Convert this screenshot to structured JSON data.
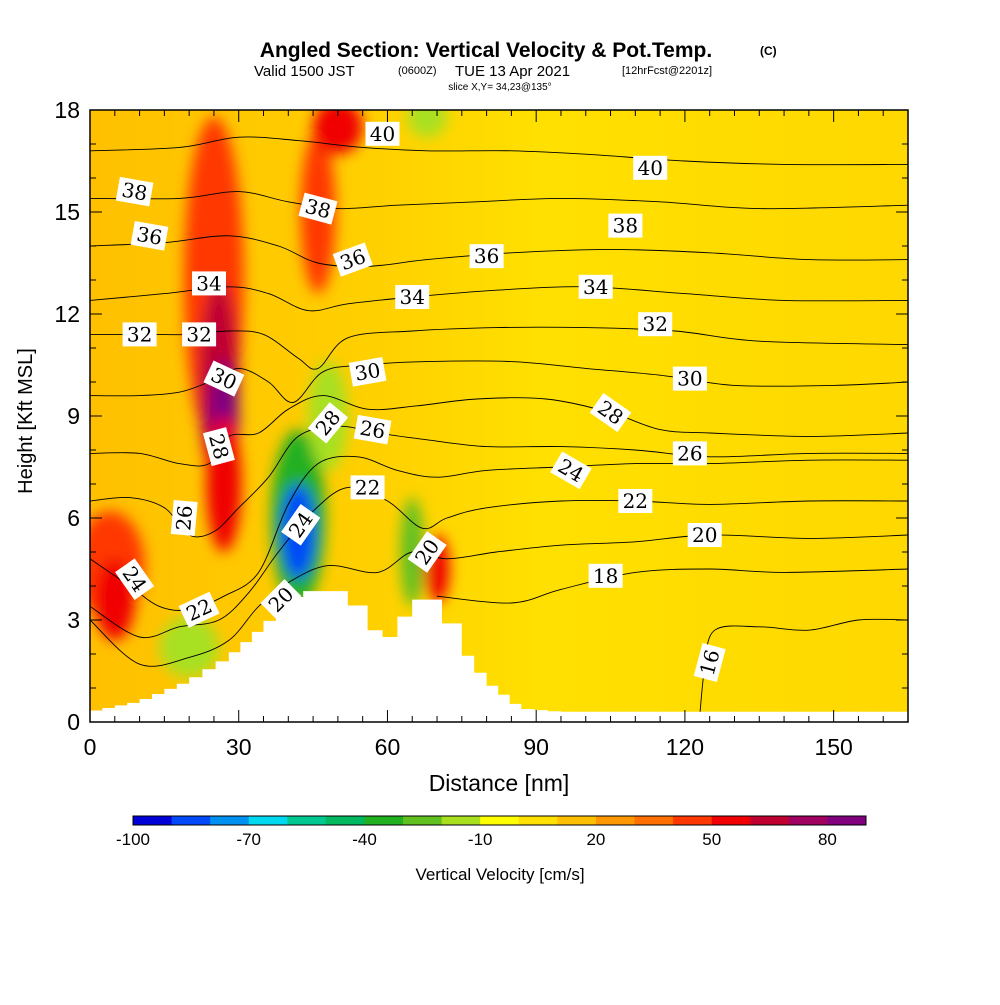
{
  "header": {
    "title": "Angled Section: Vertical Velocity & Pot.Temp.",
    "title_mark": "(C)",
    "valid_prefix": "Valid 1500 JST",
    "valid_utc": "(0600Z)",
    "valid_date": "TUE 13 Apr 2021",
    "forecast": "[12hrFcst@2201z]",
    "slice": "slice X,Y= 34,23@135°"
  },
  "chart_data": {
    "type": "heatmap",
    "xlabel": "Distance [nm]",
    "ylabel": "Height [Kft MSL]",
    "xlim": [
      0,
      165
    ],
    "ylim": [
      0,
      18
    ],
    "x_ticks": [
      0,
      30,
      60,
      90,
      120,
      150
    ],
    "y_ticks": [
      0,
      3,
      6,
      9,
      12,
      15,
      18
    ],
    "terrain_top_kft": [
      {
        "x": 0,
        "y": 0.3
      },
      {
        "x": 10,
        "y": 0.6
      },
      {
        "x": 20,
        "y": 1.2
      },
      {
        "x": 28,
        "y": 1.9
      },
      {
        "x": 35,
        "y": 2.8
      },
      {
        "x": 40,
        "y": 3.5
      },
      {
        "x": 43,
        "y": 3.85
      },
      {
        "x": 52,
        "y": 3.85
      },
      {
        "x": 56,
        "y": 3.0
      },
      {
        "x": 59,
        "y": 2.4
      },
      {
        "x": 62,
        "y": 2.6
      },
      {
        "x": 65,
        "y": 3.6
      },
      {
        "x": 71,
        "y": 3.6
      },
      {
        "x": 75,
        "y": 2.2
      },
      {
        "x": 80,
        "y": 1.2
      },
      {
        "x": 87,
        "y": 0.4
      },
      {
        "x": 95,
        "y": 0.3
      },
      {
        "x": 165,
        "y": 0.3
      }
    ],
    "colorbar": {
      "label": "Vertical Velocity [cm/s]",
      "tick_labels": [
        "-100",
        "-70",
        "-40",
        "-10",
        "20",
        "50",
        "80"
      ],
      "colors": [
        "#0000d8",
        "#0048f8",
        "#0090f0",
        "#00d8f0",
        "#00c890",
        "#00b860",
        "#20b020",
        "#60c020",
        "#a8e020",
        "#ffff00",
        "#ffe000",
        "#ffc000",
        "#ff9800",
        "#ff7000",
        "#ff3800",
        "#f00000",
        "#c00030",
        "#a00060",
        "#800080"
      ]
    },
    "theta_contours": [
      {
        "level": 16,
        "label": "16",
        "path": [
          [
            123,
            0.2
          ],
          [
            124,
            1.6
          ],
          [
            126,
            2.7
          ],
          [
            135,
            2.8
          ],
          [
            145,
            2.7
          ],
          [
            155,
            3.0
          ],
          [
            165,
            3.0
          ]
        ]
      },
      {
        "level": 18,
        "label": "18",
        "path": [
          [
            70,
            3.7
          ],
          [
            85,
            3.5
          ],
          [
            95,
            3.9
          ],
          [
            110,
            4.4
          ],
          [
            125,
            4.5
          ],
          [
            140,
            4.4
          ],
          [
            165,
            4.5
          ]
        ]
      },
      {
        "level": 20,
        "label": "20",
        "path": [
          [
            0,
            3.0
          ],
          [
            10,
            1.7
          ],
          [
            20,
            1.9
          ],
          [
            28,
            2.4
          ],
          [
            34,
            3.4
          ],
          [
            40,
            4.1
          ],
          [
            48,
            4.6
          ],
          [
            58,
            4.4
          ],
          [
            65,
            5.0
          ],
          [
            72,
            4.8
          ],
          [
            82,
            5.0
          ],
          [
            95,
            5.2
          ],
          [
            110,
            5.3
          ],
          [
            125,
            5.5
          ],
          [
            145,
            5.4
          ],
          [
            165,
            5.5
          ]
        ]
      },
      {
        "level": 22,
        "label": "22",
        "path": [
          [
            0,
            3.4
          ],
          [
            10,
            2.5
          ],
          [
            18,
            2.8
          ],
          [
            26,
            3.0
          ],
          [
            32,
            3.8
          ],
          [
            38,
            5.0
          ],
          [
            45,
            6.2
          ],
          [
            52,
            6.9
          ],
          [
            60,
            6.5
          ],
          [
            67,
            5.7
          ],
          [
            72,
            6.0
          ],
          [
            80,
            6.3
          ],
          [
            95,
            6.5
          ],
          [
            110,
            6.5
          ],
          [
            125,
            6.4
          ],
          [
            145,
            6.5
          ],
          [
            165,
            6.5
          ]
        ]
      },
      {
        "level": 24,
        "label": "24",
        "path": [
          [
            0,
            4.8
          ],
          [
            8,
            4.0
          ],
          [
            14,
            3.4
          ],
          [
            20,
            3.3
          ],
          [
            27,
            3.7
          ],
          [
            34,
            4.4
          ],
          [
            40,
            6.4
          ],
          [
            46,
            7.6
          ],
          [
            54,
            7.8
          ],
          [
            62,
            7.4
          ],
          [
            70,
            7.2
          ],
          [
            80,
            7.4
          ],
          [
            95,
            7.5
          ],
          [
            110,
            7.6
          ],
          [
            125,
            7.6
          ],
          [
            145,
            7.7
          ],
          [
            165,
            7.7
          ]
        ]
      },
      {
        "level": 26,
        "label": "26",
        "path": [
          [
            0,
            6.5
          ],
          [
            8,
            6.6
          ],
          [
            15,
            6.3
          ],
          [
            20,
            5.5
          ],
          [
            25,
            5.6
          ],
          [
            30,
            6.3
          ],
          [
            36,
            7.2
          ],
          [
            42,
            8.4
          ],
          [
            50,
            8.7
          ],
          [
            58,
            8.5
          ],
          [
            68,
            8.3
          ],
          [
            80,
            8.1
          ],
          [
            95,
            8.1
          ],
          [
            110,
            8.0
          ],
          [
            125,
            7.8
          ],
          [
            145,
            7.9
          ],
          [
            165,
            7.9
          ]
        ]
      },
      {
        "level": 28,
        "label": "28",
        "path": [
          [
            0,
            7.9
          ],
          [
            10,
            7.9
          ],
          [
            18,
            7.6
          ],
          [
            24,
            7.6
          ],
          [
            28,
            8.4
          ],
          [
            34,
            8.5
          ],
          [
            40,
            9.2
          ],
          [
            47,
            9.6
          ],
          [
            56,
            9.2
          ],
          [
            66,
            9.3
          ],
          [
            78,
            9.5
          ],
          [
            92,
            9.5
          ],
          [
            105,
            9.1
          ],
          [
            115,
            8.6
          ],
          [
            125,
            8.5
          ],
          [
            145,
            8.4
          ],
          [
            165,
            8.5
          ]
        ]
      },
      {
        "level": 30,
        "label": "30",
        "path": [
          [
            0,
            9.6
          ],
          [
            10,
            9.6
          ],
          [
            18,
            9.7
          ],
          [
            24,
            10.0
          ],
          [
            30,
            10.4
          ],
          [
            36,
            10.0
          ],
          [
            41,
            9.4
          ],
          [
            47,
            10.3
          ],
          [
            55,
            10.5
          ],
          [
            68,
            10.6
          ],
          [
            85,
            10.6
          ],
          [
            100,
            10.4
          ],
          [
            115,
            10.2
          ],
          [
            130,
            9.9
          ],
          [
            150,
            9.9
          ],
          [
            165,
            10.0
          ]
        ]
      },
      {
        "level": 32,
        "label": "32",
        "path": [
          [
            0,
            11.4
          ],
          [
            12,
            11.4
          ],
          [
            20,
            11.4
          ],
          [
            28,
            11.5
          ],
          [
            35,
            11.4
          ],
          [
            42,
            10.7
          ],
          [
            46,
            10.4
          ],
          [
            52,
            11.3
          ],
          [
            65,
            11.5
          ],
          [
            82,
            11.6
          ],
          [
            100,
            11.6
          ],
          [
            118,
            11.5
          ],
          [
            135,
            11.2
          ],
          [
            165,
            11.1
          ]
        ]
      },
      {
        "level": 34,
        "label": "34",
        "path": [
          [
            0,
            12.4
          ],
          [
            15,
            12.6
          ],
          [
            28,
            12.8
          ],
          [
            36,
            12.6
          ],
          [
            44,
            12.1
          ],
          [
            52,
            12.3
          ],
          [
            65,
            12.5
          ],
          [
            82,
            12.7
          ],
          [
            100,
            12.8
          ],
          [
            120,
            12.6
          ],
          [
            140,
            12.4
          ],
          [
            165,
            12.4
          ]
        ]
      },
      {
        "level": 36,
        "label": "36",
        "path": [
          [
            0,
            14.0
          ],
          [
            15,
            14.1
          ],
          [
            28,
            14.3
          ],
          [
            38,
            14.0
          ],
          [
            46,
            13.5
          ],
          [
            56,
            13.4
          ],
          [
            68,
            13.6
          ],
          [
            85,
            13.8
          ],
          [
            105,
            13.9
          ],
          [
            125,
            13.8
          ],
          [
            145,
            13.6
          ],
          [
            165,
            13.6
          ]
        ]
      },
      {
        "level": 38,
        "label": "38",
        "path": [
          [
            0,
            15.4
          ],
          [
            18,
            15.4
          ],
          [
            30,
            15.6
          ],
          [
            40,
            15.3
          ],
          [
            50,
            15.1
          ],
          [
            62,
            15.2
          ],
          [
            78,
            15.3
          ],
          [
            95,
            15.4
          ],
          [
            115,
            15.3
          ],
          [
            135,
            15.1
          ],
          [
            165,
            15.2
          ]
        ]
      },
      {
        "level": 40,
        "label": "40",
        "path": [
          [
            0,
            16.8
          ],
          [
            18,
            16.9
          ],
          [
            30,
            17.2
          ],
          [
            42,
            17.1
          ],
          [
            55,
            16.9
          ],
          [
            68,
            16.8
          ],
          [
            85,
            16.8
          ],
          [
            100,
            16.7
          ],
          [
            120,
            16.5
          ],
          [
            140,
            16.4
          ],
          [
            165,
            16.4
          ]
        ]
      }
    ],
    "contour_labels": [
      {
        "text": "16",
        "x": 125,
        "y": 1.75,
        "angle": -75
      },
      {
        "text": "18",
        "x": 104,
        "y": 4.3,
        "angle": 0
      },
      {
        "text": "20",
        "x": 38.5,
        "y": 3.6,
        "angle": -45
      },
      {
        "text": "20",
        "x": 68,
        "y": 5.0,
        "angle": -55
      },
      {
        "text": "20",
        "x": 124,
        "y": 5.5,
        "angle": 0
      },
      {
        "text": "22",
        "x": 22,
        "y": 3.3,
        "angle": -25
      },
      {
        "text": "22",
        "x": 56,
        "y": 6.9,
        "angle": 0
      },
      {
        "text": "22",
        "x": 110,
        "y": 6.5,
        "angle": 0
      },
      {
        "text": "24",
        "x": 9,
        "y": 4.2,
        "angle": 55
      },
      {
        "text": "24",
        "x": 42.5,
        "y": 5.8,
        "angle": -55
      },
      {
        "text": "24",
        "x": 97,
        "y": 7.4,
        "angle": 30
      },
      {
        "text": "26",
        "x": 19,
        "y": 6.0,
        "angle": -85
      },
      {
        "text": "26",
        "x": 57,
        "y": 8.6,
        "angle": 10
      },
      {
        "text": "26",
        "x": 121,
        "y": 7.9,
        "angle": 0
      },
      {
        "text": "28",
        "x": 26,
        "y": 8.1,
        "angle": 75
      },
      {
        "text": "28",
        "x": 48,
        "y": 8.8,
        "angle": -50
      },
      {
        "text": "28",
        "x": 105,
        "y": 9.1,
        "angle": 35
      },
      {
        "text": "30",
        "x": 27,
        "y": 10.1,
        "angle": 25
      },
      {
        "text": "30",
        "x": 56,
        "y": 10.3,
        "angle": -10
      },
      {
        "text": "30",
        "x": 121,
        "y": 10.1,
        "angle": 0
      },
      {
        "text": "32",
        "x": 10,
        "y": 11.4,
        "angle": 0
      },
      {
        "text": "32",
        "x": 22,
        "y": 11.4,
        "angle": 0
      },
      {
        "text": "32",
        "x": 114,
        "y": 11.7,
        "angle": 0
      },
      {
        "text": "34",
        "x": 24,
        "y": 12.9,
        "angle": 0
      },
      {
        "text": "34",
        "x": 65,
        "y": 12.5,
        "angle": 0
      },
      {
        "text": "34",
        "x": 102,
        "y": 12.8,
        "angle": 0
      },
      {
        "text": "36",
        "x": 12,
        "y": 14.3,
        "angle": 10
      },
      {
        "text": "36",
        "x": 53,
        "y": 13.6,
        "angle": -20
      },
      {
        "text": "36",
        "x": 80,
        "y": 13.7,
        "angle": 0
      },
      {
        "text": "38",
        "x": 9,
        "y": 15.6,
        "angle": 10
      },
      {
        "text": "38",
        "x": 46,
        "y": 15.1,
        "angle": 15
      },
      {
        "text": "38",
        "x": 108,
        "y": 14.6,
        "angle": 0
      },
      {
        "text": "40",
        "x": 59,
        "y": 17.3,
        "angle": 0
      },
      {
        "text": "40",
        "x": 113,
        "y": 16.3,
        "angle": 0
      }
    ],
    "velocity_cells": [
      {
        "x": 4,
        "y": 4.6,
        "rx": 7,
        "ry": 1.6,
        "w": 45
      },
      {
        "x": 5,
        "y": 3.6,
        "rx": 4,
        "ry": 1.2,
        "w": 55
      },
      {
        "x": 25,
        "y": 13.0,
        "rx": 6,
        "ry": 4.8,
        "w": 45
      },
      {
        "x": 26,
        "y": 10.0,
        "rx": 4,
        "ry": 3.0,
        "w": 60
      },
      {
        "x": 27,
        "y": 9.0,
        "rx": 3,
        "ry": 1.6,
        "w": 85
      },
      {
        "x": 27,
        "y": 7.0,
        "rx": 3.5,
        "ry": 2.0,
        "w": 55
      },
      {
        "x": 42,
        "y": 6.0,
        "rx": 5.5,
        "ry": 2.6,
        "w": -40
      },
      {
        "x": 42,
        "y": 5.6,
        "rx": 3.5,
        "ry": 1.4,
        "w": -85
      },
      {
        "x": 48,
        "y": 9.0,
        "rx": 4,
        "ry": 1.6,
        "w": -20
      },
      {
        "x": 46,
        "y": 15.0,
        "rx": 3.5,
        "ry": 2.4,
        "w": 45
      },
      {
        "x": 50,
        "y": 17.5,
        "rx": 5,
        "ry": 0.8,
        "w": 50
      },
      {
        "x": 20,
        "y": 2.2,
        "rx": 6,
        "ry": 0.9,
        "w": -15
      },
      {
        "x": 65,
        "y": 5.0,
        "rx": 2.4,
        "ry": 1.6,
        "w": -25
      },
      {
        "x": 70,
        "y": 4.5,
        "rx": 2.5,
        "ry": 1.0,
        "w": 50
      },
      {
        "x": 68,
        "y": 17.8,
        "rx": 4,
        "ry": 0.6,
        "w": -15
      }
    ]
  }
}
